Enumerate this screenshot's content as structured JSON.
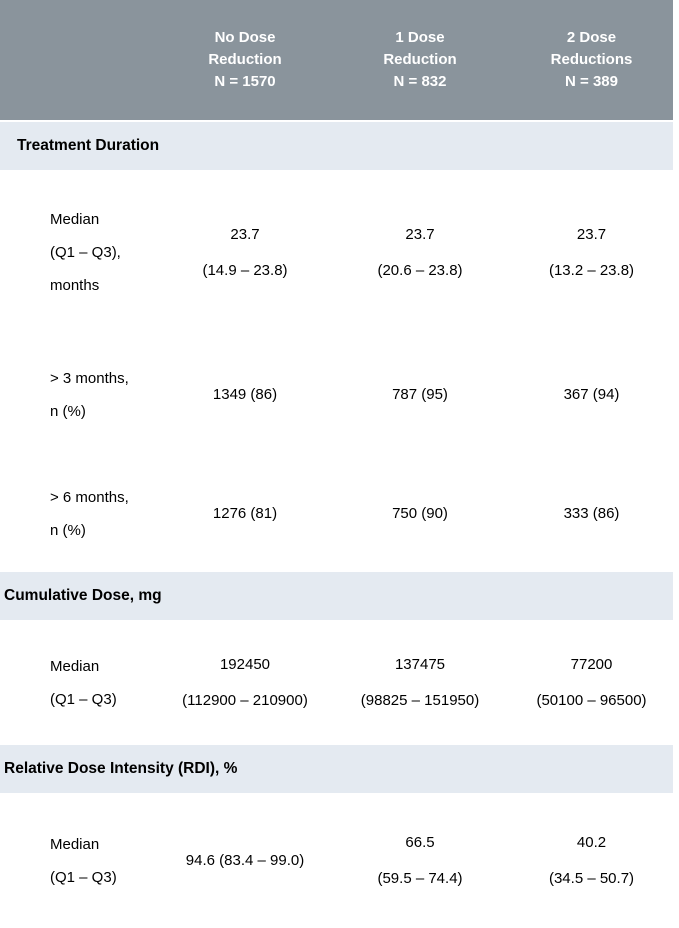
{
  "table": {
    "header": {
      "bg_color": "#8A949C",
      "text_color": "#FFFFFF",
      "columns": [
        {
          "lines": [
            "No Dose",
            "Reduction",
            "N = 1570"
          ]
        },
        {
          "lines": [
            "1 Dose",
            "Reduction",
            "N = 832"
          ]
        },
        {
          "lines": [
            "2 Dose",
            "Reductions",
            "N = 389"
          ]
        }
      ]
    },
    "section_band_color": "#E4EAF1",
    "sections": [
      {
        "title": "Treatment Duration",
        "rows": [
          {
            "label_lines": [
              "Median",
              "(Q1 – Q3),",
              "months"
            ],
            "cells": [
              [
                "23.7",
                "(14.9 – 23.8)"
              ],
              [
                "23.7",
                "(20.6 – 23.8)"
              ],
              [
                "23.7",
                "(13.2 – 23.8)"
              ]
            ]
          },
          {
            "label_lines": [
              "> 3 months,",
              "n (%)"
            ],
            "cells": [
              [
                "1349 (86)"
              ],
              [
                "787 (95)"
              ],
              [
                "367 (94)"
              ]
            ]
          },
          {
            "label_lines": [
              "> 6 months,",
              "n (%)"
            ],
            "cells": [
              [
                "1276 (81)"
              ],
              [
                "750 (90)"
              ],
              [
                "333 (86)"
              ]
            ]
          }
        ]
      },
      {
        "title": "Cumulative Dose, mg",
        "rows": [
          {
            "label_lines": [
              "Median",
              "(Q1 – Q3)"
            ],
            "cells": [
              [
                "192450",
                "(112900 – 210900)"
              ],
              [
                "137475",
                "(98825 – 151950)"
              ],
              [
                "77200",
                "(50100 – 96500)"
              ]
            ]
          }
        ]
      },
      {
        "title": "Relative Dose Intensity (RDI), %",
        "rows": [
          {
            "label_lines": [
              "Median",
              "(Q1 – Q3)"
            ],
            "cells": [
              [
                "94.6 (83.4 – 99.0)"
              ],
              [
                "66.5",
                "(59.5 – 74.4)"
              ],
              [
                "40.2",
                "(34.5 – 50.7)"
              ]
            ]
          }
        ]
      }
    ]
  }
}
